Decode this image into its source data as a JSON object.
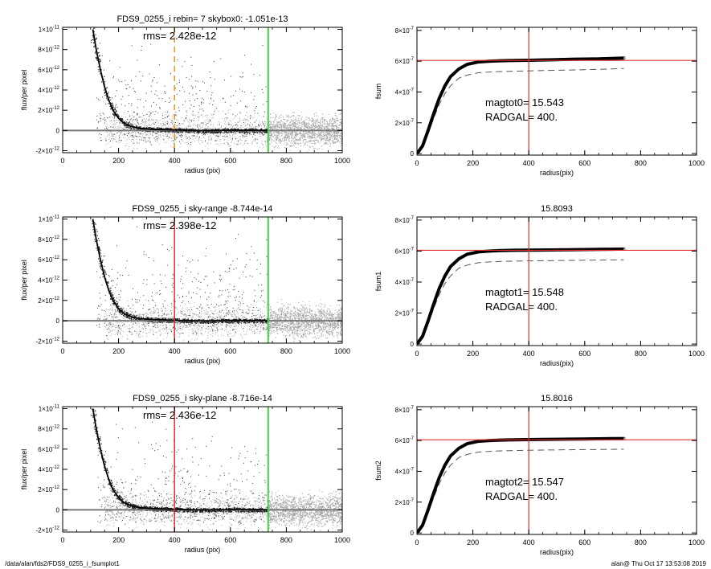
{
  "footer": {
    "path": "/data/alan/fds2/FDS9_0255_i_fsumplot1",
    "stamp": "alan@  Thu Oct 17 13:53:08 2019"
  },
  "colors": {
    "scatter_gray": "#a6a6a6",
    "profile": "#000000",
    "radgal_line": "#e03030",
    "sky_line": "#44d044",
    "dashed_orange": "#f0901e",
    "fsum_hline": "#e03030",
    "dashed_curve": "#555555"
  },
  "chart_data": [
    {
      "id": "profile0",
      "type": "scatter",
      "title": "FDS9_0255_i rebin= 7    skybox0: -1.051e-13",
      "annotation": "rms= 2.428e-12",
      "xlabel": "radius (pix)",
      "ylabel": "flux/per pixel",
      "xlim": [
        0,
        1000
      ],
      "ylim": [
        -2.2e-12,
        1.02e-11
      ],
      "xticks": [
        0,
        200,
        400,
        600,
        800,
        1000
      ],
      "xticklabels": [
        "0",
        "200",
        "400",
        "600",
        "800",
        "1000"
      ],
      "yticks": [
        -2e-12,
        0,
        2e-12,
        4e-12,
        6e-12,
        8e-12,
        1e-11
      ],
      "yticklabels": [
        [
          "2",
          "-",
          ""
        ],
        [
          "0",
          "",
          ""
        ],
        [
          "2",
          "",
          "-12"
        ],
        [
          "4",
          "",
          "-12"
        ],
        [
          "6",
          "",
          "-12"
        ],
        [
          "8",
          "",
          "-12"
        ],
        [
          "1",
          "",
          "-11"
        ]
      ],
      "profile_x": [
        108,
        120,
        135,
        150,
        165,
        180,
        200,
        220,
        250,
        280,
        320,
        360,
        400,
        500,
        600,
        700,
        735
      ],
      "profile_y": [
        1e-11,
        8e-12,
        6e-12,
        4.3e-12,
        3e-12,
        2e-12,
        1.2e-12,
        7e-13,
        3.5e-13,
        2e-13,
        1.2e-13,
        8e-14,
        5e-14,
        -2e-14,
        2e-14,
        1e-14,
        0
      ],
      "vline_dashed": 400,
      "vline_sky": 735,
      "hline": 0
    },
    {
      "id": "fsum0",
      "type": "line",
      "title": "",
      "annotation": [
        "magtot0=  15.543",
        "RADGAL=    400."
      ],
      "xlabel": "radius(pix)",
      "ylabel": "fsum",
      "xlim": [
        0,
        1000
      ],
      "ylim": [
        -1e-08,
        8.2e-07
      ],
      "xticks": [
        0,
        200,
        400,
        600,
        800,
        1000
      ],
      "xticklabels": [
        "0",
        "200",
        "400",
        "600",
        "800",
        "1000"
      ],
      "yticks": [
        0,
        2e-07,
        4e-07,
        6e-07,
        8e-07
      ],
      "yticklabels": [
        [
          "0",
          ""
        ],
        [
          "2",
          "-7"
        ],
        [
          "4",
          "-7"
        ],
        [
          "6",
          "-7"
        ],
        [
          "8",
          "-7"
        ]
      ],
      "fsum_x": [
        0,
        20,
        40,
        60,
        80,
        100,
        120,
        150,
        180,
        220,
        260,
        300,
        350,
        400,
        450,
        500,
        550,
        600,
        650,
        700,
        740
      ],
      "fsum_y": [
        0,
        5e-08,
        1.5e-07,
        2.6e-07,
        3.6e-07,
        4.4e-07,
        5e-07,
        5.5e-07,
        5.8e-07,
        5.95e-07,
        6e-07,
        6.03e-07,
        6.05e-07,
        6.06e-07,
        6.08e-07,
        6.1e-07,
        6.12e-07,
        6.14e-07,
        6.15e-07,
        6.18e-07,
        6.2e-07
      ],
      "dashed_y": [
        0,
        4.4e-08,
        1.3e-07,
        2.3e-07,
        3.2e-07,
        3.9e-07,
        4.4e-07,
        4.9e-07,
        5.1e-07,
        5.25e-07,
        5.3e-07,
        5.33e-07,
        5.35e-07,
        5.37e-07,
        5.39e-07,
        5.41e-07,
        5.43e-07,
        5.45e-07,
        5.47e-07,
        5.5e-07,
        5.52e-07
      ],
      "hline": 6.05e-07,
      "vline": 400
    },
    {
      "id": "profile1",
      "type": "scatter",
      "title": "FDS9_0255_i sky-range -8.744e-14",
      "annotation": "rms= 2.398e-12",
      "xlabel": "radius (pix)",
      "ylabel": "flux/per pixel",
      "xlim": [
        0,
        1000
      ],
      "ylim": [
        -2.2e-12,
        1.02e-11
      ],
      "xticks": [
        0,
        200,
        400,
        600,
        800,
        1000
      ],
      "xticklabels": [
        "0",
        "200",
        "400",
        "600",
        "800",
        "1000"
      ],
      "yticks": [
        -2e-12,
        0,
        2e-12,
        4e-12,
        6e-12,
        8e-12,
        1e-11
      ],
      "yticklabels": [
        [
          "2",
          "-",
          ""
        ],
        [
          "0",
          "",
          ""
        ],
        [
          "2",
          "",
          "-12"
        ],
        [
          "4",
          "",
          "-12"
        ],
        [
          "6",
          "",
          "-12"
        ],
        [
          "8",
          "",
          "-12"
        ],
        [
          "1",
          "",
          "-11"
        ]
      ],
      "profile_x": [
        108,
        120,
        135,
        150,
        165,
        180,
        200,
        220,
        250,
        280,
        320,
        360,
        400,
        500,
        600,
        700,
        735
      ],
      "profile_y": [
        1e-11,
        8e-12,
        6e-12,
        4.3e-12,
        3e-12,
        2e-12,
        1.2e-12,
        7e-13,
        3.5e-13,
        2e-13,
        1.2e-13,
        8e-14,
        5e-14,
        -2e-14,
        2e-14,
        1e-14,
        0
      ],
      "vline_radgal": 400,
      "vline_sky": 735,
      "hline": 0
    },
    {
      "id": "fsum1",
      "type": "line",
      "title": "15.8093",
      "annotation": [
        "magtot1=  15.548",
        "RADGAL=    400."
      ],
      "xlabel": "radius(pix)",
      "ylabel": "fsum1",
      "xlim": [
        0,
        1000
      ],
      "ylim": [
        -1e-08,
        8.2e-07
      ],
      "xticks": [
        0,
        200,
        400,
        600,
        800,
        1000
      ],
      "xticklabels": [
        "0",
        "200",
        "400",
        "600",
        "800",
        "1000"
      ],
      "yticks": [
        0,
        2e-07,
        4e-07,
        6e-07,
        8e-07
      ],
      "yticklabels": [
        [
          "0",
          ""
        ],
        [
          "2",
          "-7"
        ],
        [
          "4",
          "-7"
        ],
        [
          "6",
          "-7"
        ],
        [
          "8",
          "-7"
        ]
      ],
      "fsum_x": [
        0,
        20,
        40,
        60,
        80,
        100,
        120,
        150,
        180,
        220,
        260,
        300,
        350,
        400,
        450,
        500,
        550,
        600,
        650,
        700,
        740
      ],
      "fsum_y": [
        0,
        5e-08,
        1.5e-07,
        2.6e-07,
        3.6e-07,
        4.4e-07,
        5e-07,
        5.5e-07,
        5.8e-07,
        5.95e-07,
        6e-07,
        6.03e-07,
        6.05e-07,
        6.06e-07,
        6.07e-07,
        6.08e-07,
        6.09e-07,
        6.1e-07,
        6.11e-07,
        6.12e-07,
        6.13e-07
      ],
      "dashed_y": [
        0,
        4.4e-08,
        1.3e-07,
        2.3e-07,
        3.2e-07,
        3.9e-07,
        4.4e-07,
        4.9e-07,
        5.1e-07,
        5.25e-07,
        5.3e-07,
        5.33e-07,
        5.35e-07,
        5.37e-07,
        5.38e-07,
        5.39e-07,
        5.4e-07,
        5.41e-07,
        5.42e-07,
        5.43e-07,
        5.44e-07
      ],
      "hline": 6.05e-07,
      "vline": 400
    },
    {
      "id": "profile2",
      "type": "scatter",
      "title": "FDS9_0255_i sky-plane -8.716e-14",
      "annotation": "rms= 2.436e-12",
      "xlabel": "radius (pix)",
      "ylabel": "flux/per pixel",
      "xlim": [
        0,
        1000
      ],
      "ylim": [
        -2.2e-12,
        1.02e-11
      ],
      "xticks": [
        0,
        200,
        400,
        600,
        800,
        1000
      ],
      "xticklabels": [
        "0",
        "200",
        "400",
        "600",
        "800",
        "1000"
      ],
      "yticks": [
        -2e-12,
        0,
        2e-12,
        4e-12,
        6e-12,
        8e-12,
        1e-11
      ],
      "yticklabels": [
        [
          "2",
          "-",
          ""
        ],
        [
          "0",
          "",
          ""
        ],
        [
          "2",
          "",
          "-12"
        ],
        [
          "4",
          "",
          "-12"
        ],
        [
          "6",
          "",
          "-12"
        ],
        [
          "8",
          "",
          "-12"
        ],
        [
          "1",
          "",
          "-11"
        ]
      ],
      "profile_x": [
        108,
        120,
        135,
        150,
        165,
        180,
        200,
        220,
        250,
        280,
        320,
        360,
        400,
        500,
        600,
        700,
        735
      ],
      "profile_y": [
        1e-11,
        8e-12,
        6e-12,
        4.3e-12,
        3e-12,
        2e-12,
        1.2e-12,
        7e-13,
        3.5e-13,
        2e-13,
        1.2e-13,
        8e-14,
        5e-14,
        -2e-14,
        2e-14,
        1e-14,
        0
      ],
      "vline_radgal": 400,
      "vline_sky": 735,
      "hline": 0
    },
    {
      "id": "fsum2",
      "type": "line",
      "title": "15.8016",
      "annotation": [
        "magtot2=  15.547",
        "RADGAL=    400."
      ],
      "xlabel": "radius(pix)",
      "ylabel": "fsum2",
      "xlim": [
        0,
        1000
      ],
      "ylim": [
        -1e-08,
        8.2e-07
      ],
      "xticks": [
        0,
        200,
        400,
        600,
        800,
        1000
      ],
      "xticklabels": [
        "0",
        "200",
        "400",
        "600",
        "800",
        "1000"
      ],
      "yticks": [
        0,
        2e-07,
        4e-07,
        6e-07,
        8e-07
      ],
      "yticklabels": [
        [
          "0",
          ""
        ],
        [
          "2",
          "-7"
        ],
        [
          "4",
          "-7"
        ],
        [
          "6",
          "-7"
        ],
        [
          "8",
          "-7"
        ]
      ],
      "fsum_x": [
        0,
        20,
        40,
        60,
        80,
        100,
        120,
        150,
        180,
        220,
        260,
        300,
        350,
        400,
        450,
        500,
        550,
        600,
        650,
        700,
        740
      ],
      "fsum_y": [
        0,
        5e-08,
        1.5e-07,
        2.6e-07,
        3.6e-07,
        4.4e-07,
        5e-07,
        5.5e-07,
        5.8e-07,
        5.95e-07,
        6e-07,
        6.03e-07,
        6.05e-07,
        6.06e-07,
        6.07e-07,
        6.08e-07,
        6.09e-07,
        6.1e-07,
        6.11e-07,
        6.12e-07,
        6.13e-07
      ],
      "dashed_y": [
        0,
        4.4e-08,
        1.3e-07,
        2.3e-07,
        3.2e-07,
        3.9e-07,
        4.4e-07,
        4.9e-07,
        5.1e-07,
        5.25e-07,
        5.3e-07,
        5.33e-07,
        5.35e-07,
        5.37e-07,
        5.38e-07,
        5.39e-07,
        5.4e-07,
        5.41e-07,
        5.42e-07,
        5.43e-07,
        5.44e-07
      ],
      "hline": 6.05e-07,
      "vline": 400
    }
  ]
}
